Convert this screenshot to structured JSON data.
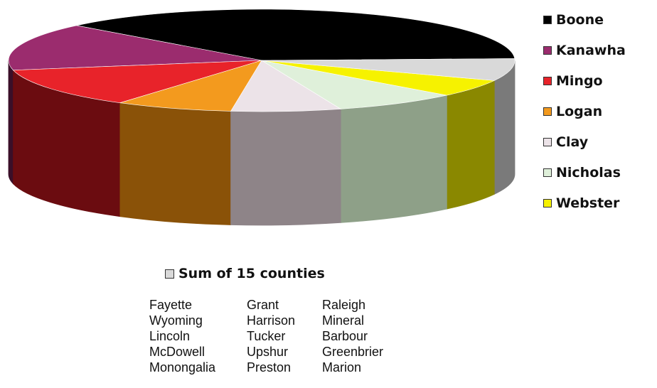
{
  "chart_data": {
    "type": "pie",
    "style": "3d",
    "start_angle_deg": -2,
    "direction": "counterclockwise",
    "slices": [
      {
        "label": "Boone",
        "value": 37.5,
        "color": "#000000",
        "side_color": "#000000"
      },
      {
        "label": "Kanawha",
        "value": 15,
        "color": "#9b2c6e",
        "side_color": "#3a0f28"
      },
      {
        "label": "Mingo",
        "value": 12.5,
        "color": "#e8232a",
        "side_color": "#6b0c10"
      },
      {
        "label": "Logan",
        "value": 7.5,
        "color": "#f39a1e",
        "side_color": "#8a5208"
      },
      {
        "label": "Clay",
        "value": 7,
        "color": "#ece3e8",
        "side_color": "#8e8488"
      },
      {
        "label": "Nicholas",
        "value": 8,
        "color": "#dff0da",
        "side_color": "#8ea088"
      },
      {
        "label": "Webster",
        "value": 5.5,
        "color": "#f6f200",
        "side_color": "#8a8800"
      },
      {
        "label": "Sum of 15 counties",
        "value": 7,
        "color": "#d9d9d9",
        "side_color": "#7a7a7a"
      }
    ]
  },
  "legend": [
    {
      "label": "Boone",
      "color": "#000000"
    },
    {
      "label": "Kanawha",
      "color": "#9b2c6e"
    },
    {
      "label": "Mingo",
      "color": "#e8232a"
    },
    {
      "label": "Logan",
      "color": "#f39a1e"
    },
    {
      "label": "Clay",
      "color": "#ece3e8"
    },
    {
      "label": "Nicholas",
      "color": "#dff0da"
    },
    {
      "label": "Webster",
      "color": "#f6f200"
    }
  ],
  "sum_legend": {
    "label": "Sum of 15 counties",
    "color": "#d9d9d9",
    "counties": [
      [
        "Fayette",
        "Wyoming",
        "Lincoln",
        "McDowell",
        "Monongalia"
      ],
      [
        "Grant",
        "Harrison",
        "Tucker",
        "Upshur",
        "Preston"
      ],
      [
        "Raleigh",
        "Mineral",
        "Barbour",
        "Greenbrier",
        "Marion"
      ]
    ]
  }
}
